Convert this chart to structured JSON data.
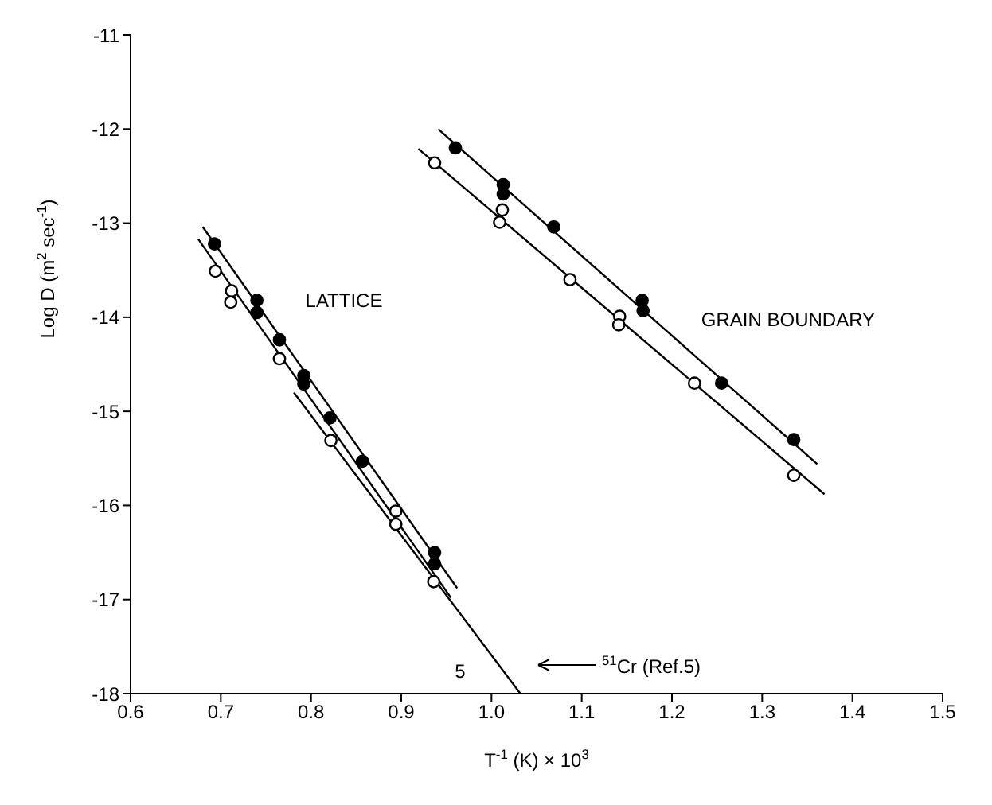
{
  "chart_data": {
    "type": "scatter",
    "xlabel": "T$^{-1}$ (K) × 10$^{3}$",
    "ylabel": "Log D (m$^{2}$ sec$^{-1}$)",
    "xlim": [
      0.6,
      1.5
    ],
    "xticks": [
      0.6,
      0.7,
      0.8,
      0.9,
      {
        "value": 1,
        "label": "1.0"
      },
      1.1,
      1.2,
      1.3,
      1.4,
      1.5
    ],
    "ylim": [
      -18,
      -11
    ],
    "yticks": [
      -18,
      -17,
      -16,
      -15,
      -14,
      -13,
      -12,
      -11
    ],
    "grid": false,
    "legend": false,
    "marker": "circle",
    "series": [
      {
        "color": "#000000",
        "x": [
          0.693,
          0.74,
          0.74,
          0.765,
          0.792,
          0.792,
          0.821,
          0.857,
          0.937,
          0.937
        ],
        "values": [
          -13.22,
          -13.82,
          -13.95,
          -14.24,
          -14.62,
          -14.71,
          -15.07,
          -15.53,
          -16.5,
          -16.62
        ]
      },
      {
        "color": "#ffffff",
        "x": [
          0.694,
          0.712,
          0.711,
          0.765,
          0.822,
          0.894,
          0.894,
          0.936
        ],
        "values": [
          -13.51,
          -13.72,
          -13.84,
          -14.44,
          -15.31,
          -16.06,
          -16.2,
          -16.81
        ]
      },
      {
        "color": "#000000",
        "x": [
          0.96,
          1.013,
          1.013,
          1.069,
          1.167,
          1.168,
          1.255,
          1.335
        ],
        "values": [
          -12.2,
          -12.59,
          -12.69,
          -13.04,
          -13.82,
          -13.93,
          -14.7,
          -15.3
        ]
      },
      {
        "color": "#ffffff",
        "x": [
          0.937,
          1.012,
          1.009,
          1.087,
          1.142,
          1.141,
          1.225,
          1.335
        ],
        "values": [
          -12.36,
          -12.86,
          -12.99,
          -13.6,
          -13.99,
          -14.08,
          -14.7,
          -15.68
        ]
      },
      {
        "type": "line",
        "color": "#000000",
        "marker": "none",
        "x": [
          0.68,
          0.962
        ],
        "values": [
          -13.04,
          -16.88
        ]
      },
      {
        "type": "line",
        "color": "#000000",
        "marker": "none",
        "x": [
          0.675,
          0.955
        ],
        "values": [
          -13.17,
          -16.98
        ]
      },
      {
        "type": "line",
        "color": "#000000",
        "marker": "none",
        "x": [
          0.781,
          1.032
        ],
        "values": [
          -14.8,
          -18
        ]
      },
      {
        "type": "line",
        "color": "#000000",
        "marker": "none",
        "x": [
          0.941,
          1.361
        ],
        "values": [
          -12.0,
          -15.56
        ]
      },
      {
        "type": "line",
        "color": "#000000",
        "marker": "none",
        "x": [
          0.919,
          1.369
        ],
        "values": [
          -12.21,
          -15.88
        ]
      }
    ],
    "annotations": [
      "LATTICE",
      "GRAIN BOUNDARY",
      "5",
      "$^{51}$Cr (Ref.5)"
    ]
  }
}
